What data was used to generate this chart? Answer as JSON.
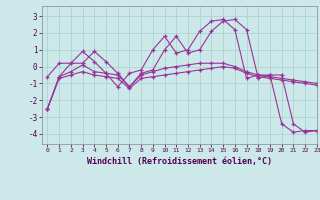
{
  "title": "",
  "xlabel": "Windchill (Refroidissement éolien,°C)",
  "ylabel": "",
  "bg_color": "#cce8e8",
  "grid_color": "#aad4d4",
  "line_color": "#993399",
  "xlim": [
    -0.5,
    23
  ],
  "ylim": [
    -4.6,
    3.6
  ],
  "xticks": [
    0,
    1,
    2,
    3,
    4,
    5,
    6,
    7,
    8,
    9,
    10,
    11,
    12,
    13,
    14,
    15,
    16,
    17,
    18,
    19,
    20,
    21,
    22,
    23
  ],
  "yticks": [
    -4,
    -3,
    -2,
    -1,
    0,
    1,
    2,
    3
  ],
  "series": [
    [
      -2.5,
      -0.6,
      0.2,
      0.2,
      0.9,
      0.3,
      -0.4,
      -1.2,
      -0.4,
      -0.2,
      1.0,
      1.8,
      0.8,
      1.0,
      2.1,
      2.7,
      2.8,
      2.2,
      -0.7,
      -0.5,
      -0.5,
      -3.4,
      -3.9,
      -3.8
    ],
    [
      -0.6,
      0.2,
      0.2,
      0.9,
      0.3,
      -0.4,
      -1.2,
      -0.4,
      -0.2,
      1.0,
      1.8,
      0.8,
      1.0,
      2.1,
      2.7,
      2.8,
      2.2,
      -0.7,
      -0.5,
      -0.5,
      -3.4,
      -3.9,
      -3.8,
      -3.8
    ],
    [
      -2.5,
      -0.6,
      -0.3,
      0.1,
      -0.3,
      -0.4,
      -0.5,
      -1.2,
      -0.5,
      -0.3,
      -0.1,
      0.0,
      0.1,
      0.2,
      0.2,
      0.2,
      0.0,
      -0.3,
      -0.5,
      -0.6,
      -0.7,
      -0.8,
      -0.9,
      -1.0
    ],
    [
      -2.5,
      -0.7,
      -0.5,
      -0.3,
      -0.5,
      -0.6,
      -0.7,
      -1.3,
      -0.7,
      -0.6,
      -0.5,
      -0.4,
      -0.3,
      -0.2,
      -0.1,
      0.0,
      -0.1,
      -0.4,
      -0.6,
      -0.7,
      -0.8,
      -0.9,
      -1.0,
      -1.1
    ]
  ]
}
